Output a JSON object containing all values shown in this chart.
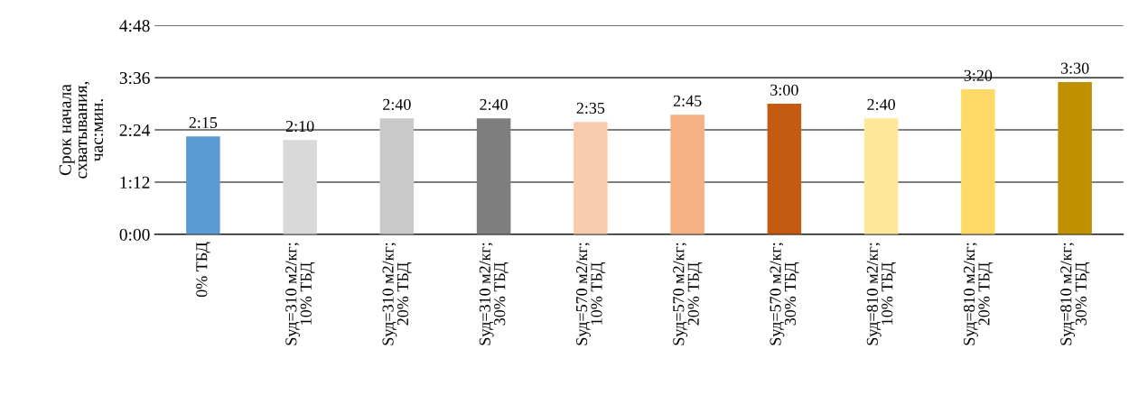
{
  "chart_data": {
    "type": "bar",
    "ylabel": "Срок начала\nсхватывания,\nчас:мин.",
    "categories": [
      "0% ТБД",
      "Sуд=310 м2/кг;\n10% ТБД",
      "Sуд=310 м2/кг;\n20% ТБД",
      "Sуд=310 м2/кг;\n30% ТБД",
      "Sуд=570 м2/кг;\n10% ТБД",
      "Sуд=570 м2/кг;\n20% ТБД",
      "Sуд=570 м2/кг;\n30% ТБД",
      "Sуд=810 м2/кг;\n10% ТБД",
      "Sуд=810 м2/кг;\n20% ТБД",
      "Sуд=810 м2/кг;\n30% ТБД"
    ],
    "values": [
      135,
      130,
      160,
      160,
      155,
      165,
      180,
      160,
      200,
      210
    ],
    "value_labels": [
      "2:15",
      "2:10",
      "2:40",
      "2:40",
      "2:35",
      "2:45",
      "3:00",
      "2:40",
      "3:20",
      "3:30"
    ],
    "colors": [
      "#5b9bd5",
      "#d9d9d9",
      "#c9c9c9",
      "#7f7f7f",
      "#f8cbad",
      "#f4b183",
      "#c55a11",
      "#ffe699",
      "#ffd966",
      "#bf9000"
    ],
    "ylim": [
      0,
      288
    ],
    "yticks": [
      {
        "value": 0,
        "label": "0:00"
      },
      {
        "value": 72,
        "label": "1:12"
      },
      {
        "value": 144,
        "label": "2:24"
      },
      {
        "value": 216,
        "label": "3:36"
      },
      {
        "value": 288,
        "label": "4:48"
      }
    ],
    "grid": "y"
  }
}
